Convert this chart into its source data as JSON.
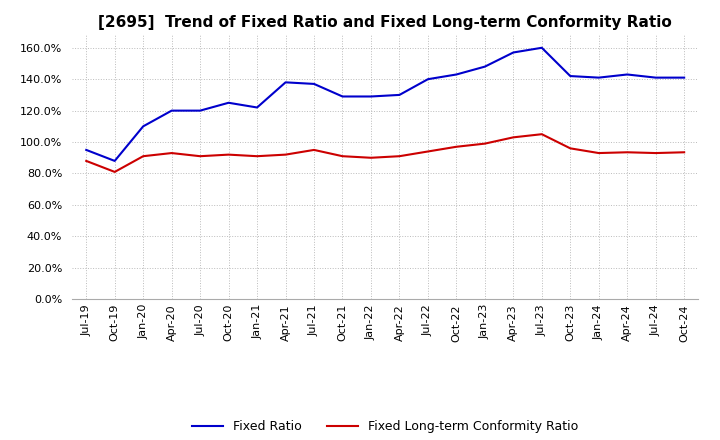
{
  "title": "[2695]  Trend of Fixed Ratio and Fixed Long-term Conformity Ratio",
  "x_labels": [
    "Jul-19",
    "Oct-19",
    "Jan-20",
    "Apr-20",
    "Jul-20",
    "Oct-20",
    "Jan-21",
    "Apr-21",
    "Jul-21",
    "Oct-21",
    "Jan-22",
    "Apr-22",
    "Jul-22",
    "Oct-22",
    "Jan-23",
    "Apr-23",
    "Jul-23",
    "Oct-23",
    "Jan-24",
    "Apr-24",
    "Jul-24",
    "Oct-24"
  ],
  "fixed_ratio": [
    95.0,
    88.0,
    110.0,
    120.0,
    120.0,
    125.0,
    122.0,
    138.0,
    137.0,
    129.0,
    129.0,
    130.0,
    140.0,
    143.0,
    148.0,
    157.0,
    160.0,
    142.0,
    141.0,
    143.0,
    141.0,
    141.0
  ],
  "fixed_lt_ratio": [
    88.0,
    81.0,
    91.0,
    93.0,
    91.0,
    92.0,
    91.0,
    92.0,
    95.0,
    91.0,
    90.0,
    91.0,
    94.0,
    97.0,
    99.0,
    103.0,
    105.0,
    96.0,
    93.0,
    93.5,
    93.0,
    93.5
  ],
  "ylim": [
    0,
    168
  ],
  "yticks": [
    0,
    20,
    40,
    60,
    80,
    100,
    120,
    140,
    160
  ],
  "fixed_ratio_color": "#0000cc",
  "fixed_lt_ratio_color": "#cc0000",
  "line_width": 1.5,
  "background_color": "#ffffff",
  "title_fontsize": 11,
  "legend_fontsize": 9,
  "tick_fontsize": 8,
  "grid_color": "#aaaaaa",
  "grid_style": ":"
}
